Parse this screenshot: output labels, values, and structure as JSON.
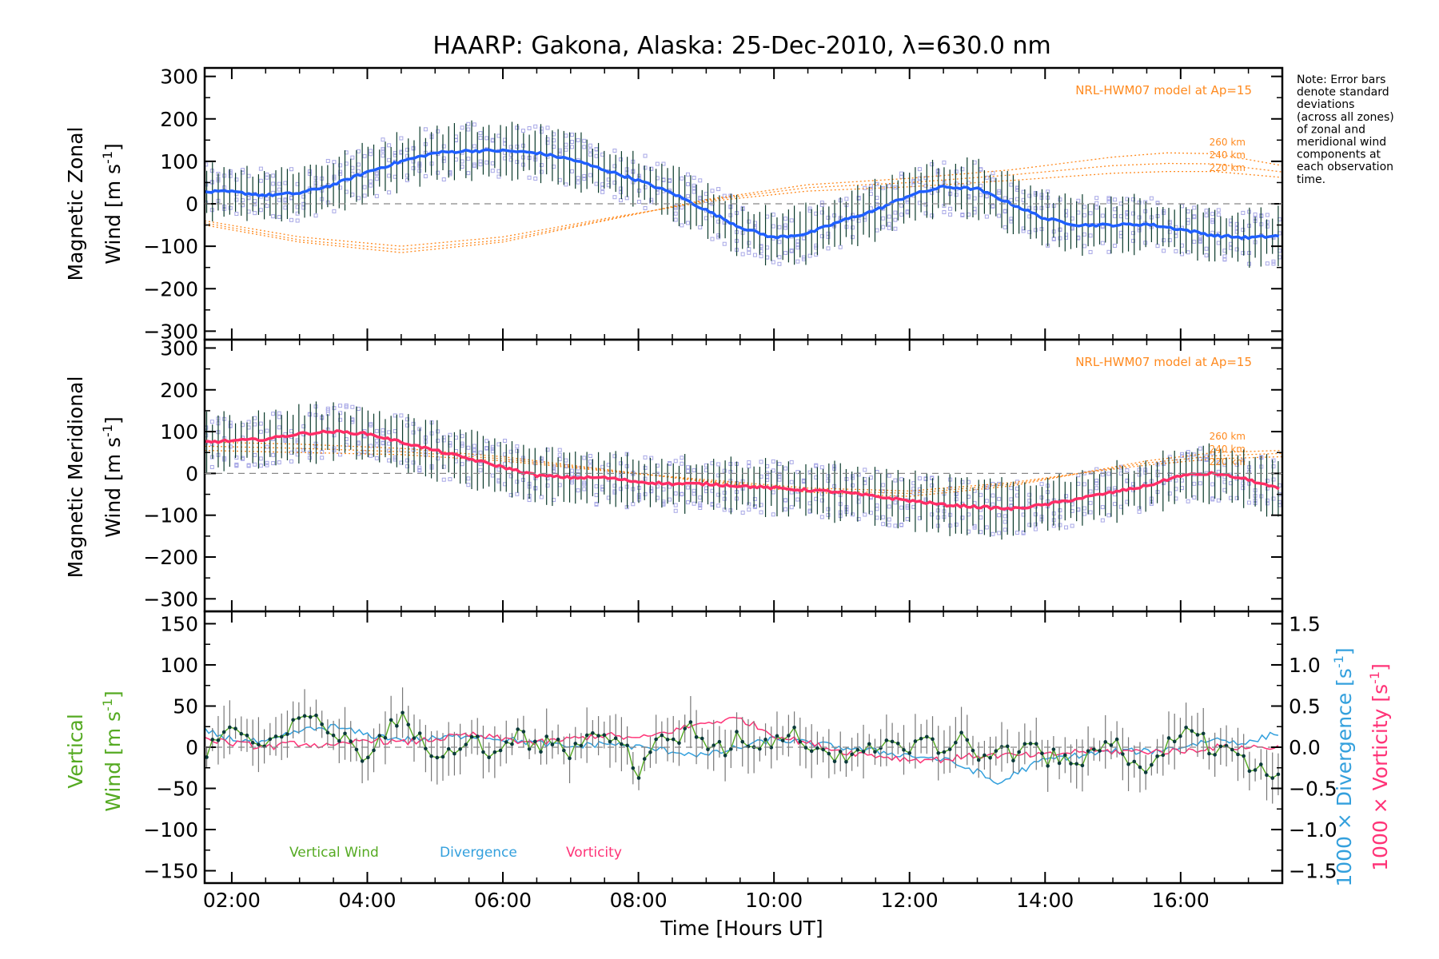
{
  "title": "HAARP: Gakona,  Alaska: 25-Dec-2010, λ=630.0 nm",
  "x_axis": {
    "label": "Time [Hours UT]",
    "ticks": [
      "02:00",
      "04:00",
      "06:00",
      "08:00",
      "10:00",
      "12:00",
      "14:00",
      "16:00"
    ],
    "tick_hours": [
      2,
      4,
      6,
      8,
      10,
      12,
      14,
      16
    ],
    "range": [
      1.6,
      17.5
    ]
  },
  "note": [
    "Note: Error bars",
    "denote standard",
    "deviations",
    "(across all zones)",
    "of zonal and",
    "meridional wind",
    "components at",
    "each observation",
    "time."
  ],
  "colors": {
    "zonal_line": "#1f5fff",
    "zonal_light": "#4da6ff",
    "meridional_line": "#ff2d66",
    "vertical_wind": "#55aa22",
    "divergence": "#33a0dd",
    "vorticity": "#ff3377",
    "model": "#ff8a1f",
    "scatter": "#a7a7e6",
    "errorbar": "#0a3a2a"
  },
  "panels": {
    "zonal": {
      "ylabel_line1": "Magnetic Zonal",
      "ylabel_line2": "Wind [m s",
      "ylabel_sup": "-1",
      "ylabel_close": "]",
      "yticks": [
        "300",
        "200",
        "100",
        "0",
        "−100",
        "−200",
        "−300"
      ],
      "ytick_values": [
        300,
        200,
        100,
        0,
        -100,
        -200,
        -300
      ],
      "ylim": [
        -320,
        320
      ],
      "model_label": "NRL-HWM07 model at Ap=15",
      "model_heights": [
        "260 km",
        "240 km",
        "220 km"
      ]
    },
    "meridional": {
      "ylabel_line1": "Magnetic Meridional",
      "ylabel_line2": "Wind [m s",
      "ylabel_sup": "-1",
      "ylabel_close": "]",
      "yticks": [
        "300",
        "200",
        "100",
        "0",
        "−100",
        "−200",
        "−300"
      ],
      "ytick_values": [
        300,
        200,
        100,
        0,
        -100,
        -200,
        -300
      ],
      "ylim": [
        -330,
        320
      ],
      "model_label": "NRL-HWM07 model at Ap=15",
      "model_heights": [
        "260 km",
        "240 km",
        "220 km"
      ]
    },
    "vertical": {
      "ylabel_line1": "Vertical",
      "ylabel_line2": "Wind [m s",
      "ylabel_sup": "-1",
      "ylabel_close": "]",
      "yticks": [
        "150",
        "100",
        "50",
        "0",
        "−50",
        "−100",
        "−150"
      ],
      "ytick_values": [
        150,
        100,
        50,
        0,
        -50,
        -100,
        -150
      ],
      "ylim": [
        -165,
        165
      ],
      "right_yticks": [
        "1.5",
        "1.0",
        "0.5",
        "0.0",
        "−0.5",
        "−1.0",
        "−1.5"
      ],
      "right_ytick_values": [
        1.5,
        1.0,
        0.5,
        0.0,
        -0.5,
        -1.0,
        -1.5
      ],
      "right_ylim": [
        -1.65,
        1.65
      ],
      "right_label_divergence": "1000 × Divergence [s",
      "right_label_vorticity": "1000 × Vorticity [s",
      "right_label_sup": "-1",
      "right_label_close": "]",
      "legend": [
        "Vertical Wind",
        "Divergence",
        "Vorticity"
      ]
    }
  },
  "chart_data": [
    {
      "type": "line",
      "title": "HAARP: Gakona,  Alaska: 25-Dec-2010, λ=630.0 nm",
      "ylabel": "Magnetic Zonal Wind [m s-1]",
      "ylim": [
        -320,
        320
      ],
      "series": [
        {
          "name": "Zonal wind",
          "x": [
            1.6,
            2.0,
            2.5,
            3.0,
            3.5,
            4.0,
            4.5,
            5.0,
            5.5,
            6.0,
            6.5,
            7.0,
            7.5,
            8.0,
            8.5,
            9.0,
            9.5,
            10.0,
            10.5,
            11.0,
            11.5,
            12.0,
            12.5,
            13.0,
            13.5,
            14.0,
            14.5,
            15.0,
            15.5,
            16.0,
            16.5,
            17.0,
            17.5
          ],
          "y": [
            28,
            28,
            20,
            25,
            45,
            75,
            100,
            120,
            125,
            125,
            120,
            105,
            80,
            55,
            25,
            -15,
            -55,
            -80,
            -70,
            -40,
            -15,
            20,
            40,
            35,
            0,
            -35,
            -50,
            -50,
            -48,
            -60,
            -75,
            -80,
            -75
          ]
        },
        {
          "name": "260 km",
          "x": [
            1.6,
            3,
            4.5,
            6,
            7.5,
            9,
            10.5,
            12,
            13.5,
            15,
            15.8,
            16.5,
            17.5
          ],
          "y": [
            -50,
            -90,
            -115,
            -90,
            -40,
            10,
            45,
            60,
            80,
            110,
            120,
            118,
            90
          ]
        },
        {
          "name": "240 km",
          "x": [
            1.6,
            3,
            4.5,
            6,
            7.5,
            9,
            10.5,
            12,
            13.5,
            15,
            15.8,
            16.5,
            17.5
          ],
          "y": [
            -45,
            -85,
            -108,
            -85,
            -38,
            8,
            38,
            50,
            68,
            90,
            95,
            94,
            75
          ]
        },
        {
          "name": "220 km",
          "x": [
            1.6,
            3,
            4.5,
            6,
            7.5,
            9,
            10.5,
            12,
            13.5,
            15,
            15.8,
            16.5,
            17.5
          ],
          "y": [
            -40,
            -78,
            -100,
            -78,
            -35,
            5,
            30,
            40,
            55,
            72,
            76,
            76,
            62
          ]
        }
      ]
    },
    {
      "type": "line",
      "ylabel": "Magnetic Meridional Wind [m s-1]",
      "ylim": [
        -330,
        320
      ],
      "series": [
        {
          "name": "Meridional wind",
          "x": [
            1.6,
            2.0,
            2.5,
            3.0,
            3.5,
            4.0,
            4.5,
            5.0,
            5.5,
            6.0,
            6.5,
            7.0,
            7.5,
            8.0,
            8.5,
            9.0,
            9.5,
            10.0,
            10.5,
            11.0,
            11.5,
            12.0,
            12.5,
            13.0,
            13.5,
            14.0,
            14.5,
            15.0,
            15.5,
            16.0,
            16.5,
            17.0,
            17.5
          ],
          "y": [
            75,
            78,
            82,
            95,
            100,
            95,
            75,
            55,
            35,
            15,
            -5,
            -10,
            -10,
            -20,
            -25,
            -25,
            -30,
            -35,
            -40,
            -45,
            -55,
            -65,
            -75,
            -80,
            -85,
            -75,
            -60,
            -45,
            -30,
            -5,
            0,
            -15,
            -40
          ]
        },
        {
          "name": "260 km",
          "x": [
            1.6,
            3,
            4.5,
            6,
            7.5,
            9,
            10.5,
            12,
            13.5,
            14.5,
            15.5,
            16.5,
            17.5
          ],
          "y": [
            75,
            70,
            60,
            40,
            10,
            -20,
            -45,
            -55,
            -30,
            0,
            30,
            50,
            55
          ]
        },
        {
          "name": "240 km",
          "x": [
            1.6,
            3,
            4.5,
            6,
            7.5,
            9,
            10.5,
            12,
            13.5,
            14.5,
            15.5,
            16.5,
            17.5
          ],
          "y": [
            65,
            60,
            52,
            35,
            8,
            -18,
            -40,
            -48,
            -26,
            0,
            25,
            42,
            48
          ]
        },
        {
          "name": "220 km",
          "x": [
            1.6,
            3,
            4.5,
            6,
            7.5,
            9,
            10.5,
            12,
            13.5,
            14.5,
            15.5,
            16.5,
            17.5
          ],
          "y": [
            55,
            50,
            45,
            30,
            6,
            -15,
            -35,
            -42,
            -22,
            0,
            20,
            35,
            40
          ]
        }
      ]
    },
    {
      "type": "line",
      "xlabel": "Time [Hours UT]",
      "ylabel": "Vertical Wind [m s-1]",
      "ylim": [
        -165,
        165
      ],
      "y2label": "1000 × Divergence [s-1] / 1000 × Vorticity [s-1]",
      "y2lim": [
        -1.65,
        1.65
      ],
      "series": [
        {
          "name": "Vertical Wind",
          "axis": "left",
          "x": [
            1.6,
            1.75,
            2.0,
            2.25,
            2.5,
            2.75,
            3.0,
            3.25,
            3.5,
            3.75,
            4.0,
            4.25,
            4.5,
            4.75,
            5.0,
            5.25,
            5.5,
            5.75,
            6.0,
            6.25,
            6.5,
            6.75,
            7.0,
            7.25,
            7.5,
            7.75,
            8.0,
            8.25,
            8.5,
            8.75,
            9.0,
            9.25,
            9.5,
            9.75,
            10.0,
            10.25,
            10.5,
            10.75,
            11.0,
            11.25,
            11.5,
            11.75,
            12.0,
            12.25,
            12.5,
            12.75,
            13.0,
            13.25,
            13.5,
            13.75,
            14.0,
            14.25,
            14.5,
            14.75,
            15.0,
            15.25,
            15.5,
            15.75,
            16.0,
            16.25,
            16.5,
            16.75,
            17.0,
            17.25,
            17.5
          ],
          "y": [
            -20,
            10,
            25,
            10,
            -5,
            15,
            30,
            40,
            15,
            5,
            -15,
            20,
            35,
            10,
            -5,
            0,
            15,
            -5,
            5,
            15,
            0,
            10,
            -10,
            20,
            5,
            10,
            -30,
            10,
            0,
            25,
            5,
            -5,
            15,
            0,
            10,
            20,
            5,
            -5,
            -15,
            5,
            0,
            10,
            -5,
            20,
            -10,
            15,
            -15,
            0,
            -10,
            5,
            -15,
            -10,
            -20,
            -5,
            10,
            -15,
            -25,
            0,
            10,
            25,
            -10,
            5,
            -20,
            -30,
            -40
          ]
        },
        {
          "name": "Divergence",
          "axis": "right",
          "x": [
            1.6,
            2.0,
            2.5,
            3.0,
            3.5,
            4.0,
            4.5,
            5.0,
            5.5,
            6.0,
            6.5,
            7.0,
            7.5,
            8.0,
            8.5,
            9.0,
            9.5,
            10.0,
            10.5,
            11.0,
            11.5,
            12.0,
            12.5,
            13.0,
            13.3,
            13.6,
            14.0,
            14.5,
            15.0,
            15.5,
            16.0,
            16.5,
            17.0,
            17.5
          ],
          "y": [
            0.2,
            0.1,
            0.05,
            0.2,
            0.25,
            0.15,
            0.1,
            0.1,
            0.15,
            0.1,
            0.05,
            0.0,
            0.05,
            0.0,
            -0.05,
            -0.1,
            0.0,
            0.1,
            0.05,
            0.0,
            -0.05,
            -0.1,
            -0.15,
            -0.3,
            -0.45,
            -0.3,
            -0.15,
            -0.1,
            -0.05,
            -0.05,
            0.0,
            0.1,
            0.05,
            0.2
          ]
        },
        {
          "name": "Vorticity",
          "axis": "right",
          "x": [
            1.6,
            2.0,
            2.5,
            3.0,
            3.5,
            4.0,
            4.5,
            5.0,
            5.5,
            6.0,
            6.5,
            7.0,
            7.5,
            8.0,
            8.5,
            9.0,
            9.5,
            10.0,
            10.5,
            11.0,
            11.5,
            12.0,
            12.5,
            13.0,
            13.5,
            14.0,
            14.5,
            15.0,
            15.5,
            16.0,
            16.5,
            17.0,
            17.5
          ],
          "y": [
            0.1,
            0.05,
            0.0,
            0.05,
            0.0,
            0.1,
            0.05,
            0.1,
            0.15,
            0.1,
            0.05,
            0.1,
            0.15,
            0.1,
            0.2,
            0.3,
            0.35,
            0.15,
            0.05,
            -0.05,
            -0.1,
            -0.15,
            -0.15,
            -0.1,
            -0.1,
            -0.1,
            -0.05,
            -0.05,
            -0.05,
            -0.05,
            0.0,
            0.0,
            0.0
          ]
        }
      ]
    }
  ]
}
